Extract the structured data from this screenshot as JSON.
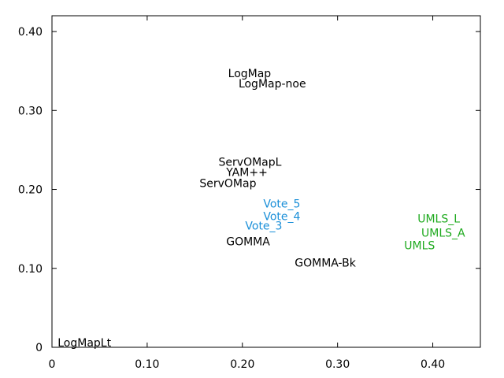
{
  "chart_data": {
    "type": "scatter",
    "title": "",
    "xlabel": "",
    "ylabel": "",
    "xlim": [
      0,
      0.45
    ],
    "ylim": [
      0,
      0.42
    ],
    "grid": false,
    "x_ticks": [
      {
        "value": 0,
        "label": "0"
      },
      {
        "value": 0.1,
        "label": "0.10"
      },
      {
        "value": 0.2,
        "label": "0.20"
      },
      {
        "value": 0.3,
        "label": "0.30"
      },
      {
        "value": 0.4,
        "label": "0.40"
      }
    ],
    "y_ticks": [
      {
        "value": 0,
        "label": "0"
      },
      {
        "value": 0.1,
        "label": "0.10"
      },
      {
        "value": 0.2,
        "label": "0.20"
      },
      {
        "value": 0.3,
        "label": "0.30"
      },
      {
        "value": 0.4,
        "label": "0.40"
      }
    ],
    "colors": {
      "default": "#000000",
      "vote": "#1a8fd8",
      "umls": "#1faa1f"
    },
    "points": [
      {
        "label": "LogMap",
        "x": 0.185,
        "y": 0.347,
        "group": "default"
      },
      {
        "label": "LogMap-noe",
        "x": 0.196,
        "y": 0.334,
        "group": "default"
      },
      {
        "label": "ServOMapL",
        "x": 0.175,
        "y": 0.235,
        "group": "default"
      },
      {
        "label": "YAM++",
        "x": 0.183,
        "y": 0.222,
        "group": "default"
      },
      {
        "label": "ServOMap",
        "x": 0.155,
        "y": 0.208,
        "group": "default"
      },
      {
        "label": "GOMMA",
        "x": 0.183,
        "y": 0.134,
        "group": "default"
      },
      {
        "label": "GOMMA-Bk",
        "x": 0.255,
        "y": 0.107,
        "group": "default"
      },
      {
        "label": "LogMapLt",
        "x": 0.006,
        "y": 0.006,
        "group": "default"
      },
      {
        "label": "Vote_5",
        "x": 0.222,
        "y": 0.182,
        "group": "vote"
      },
      {
        "label": "Vote_4",
        "x": 0.222,
        "y": 0.166,
        "group": "vote"
      },
      {
        "label": "Vote_3",
        "x": 0.203,
        "y": 0.154,
        "group": "vote"
      },
      {
        "label": "UMLS_L",
        "x": 0.384,
        "y": 0.163,
        "group": "umls"
      },
      {
        "label": "UMLS_A",
        "x": 0.388,
        "y": 0.145,
        "group": "umls"
      },
      {
        "label": "UMLS",
        "x": 0.37,
        "y": 0.129,
        "group": "umls"
      }
    ]
  }
}
